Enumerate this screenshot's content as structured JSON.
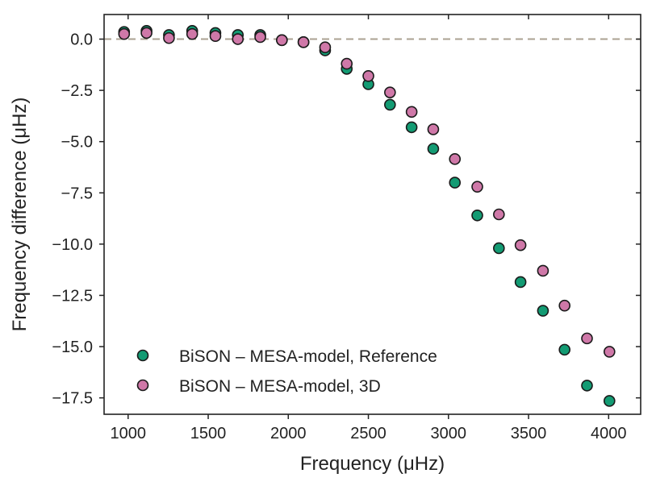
{
  "chart_data": {
    "type": "scatter",
    "title": "",
    "xlabel": "Frequency (μHz)",
    "ylabel": "Frequency difference (μHz)",
    "xlim": [
      850,
      4200
    ],
    "ylim": [
      -18.3,
      1.2
    ],
    "xticks": [
      1000,
      1500,
      2000,
      2500,
      3000,
      3500,
      4000
    ],
    "xtick_labels": [
      "1000",
      "1500",
      "2000",
      "2500",
      "3000",
      "3500",
      "4000"
    ],
    "yticks": [
      0.0,
      -2.5,
      -5.0,
      -7.5,
      -10.0,
      -12.5,
      -15.0,
      -17.5
    ],
    "ytick_labels": [
      "0.0",
      "−2.5",
      "−5.0",
      "−7.5",
      "−10.0",
      "−12.5",
      "−15.0",
      "−17.5"
    ],
    "reference_line": {
      "y": 0,
      "style": "dashed",
      "color": "#aba192"
    },
    "grid": false,
    "legend_position": "lower-left",
    "series": [
      {
        "name": "BiSON – MESA-model, Reference",
        "color": "#139b73",
        "x": [
          975,
          1115,
          1255,
          1400,
          1545,
          1685,
          1825,
          1960,
          2095,
          2230,
          2365,
          2500,
          2635,
          2770,
          2905,
          3040,
          3180,
          3315,
          3450,
          3590,
          3725,
          3865,
          4005
        ],
        "y": [
          0.35,
          0.4,
          0.2,
          0.4,
          0.3,
          0.2,
          0.2,
          -0.05,
          -0.15,
          -0.55,
          -1.45,
          -2.2,
          -3.2,
          -4.3,
          -5.35,
          -7.0,
          -8.6,
          -10.2,
          -11.85,
          -13.25,
          -15.15,
          -16.9,
          -17.65
        ]
      },
      {
        "name": "BiSON – MESA-model, 3D",
        "color": "#cf78a8",
        "x": [
          975,
          1115,
          1255,
          1400,
          1545,
          1685,
          1825,
          1960,
          2095,
          2230,
          2365,
          2500,
          2635,
          2770,
          2905,
          3040,
          3180,
          3315,
          3450,
          3590,
          3725,
          3865,
          4005
        ],
        "y": [
          0.25,
          0.3,
          0.05,
          0.25,
          0.15,
          0.0,
          0.1,
          -0.05,
          -0.15,
          -0.4,
          -1.2,
          -1.8,
          -2.6,
          -3.55,
          -4.4,
          -5.85,
          -7.2,
          -8.55,
          -10.05,
          -11.3,
          -13.0,
          -14.6,
          -15.25
        ]
      }
    ]
  }
}
